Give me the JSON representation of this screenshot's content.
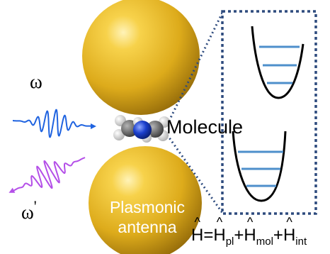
{
  "labels": {
    "omega": "ω",
    "omega_prime_symbol": "ω",
    "omega_prime_mark": "'",
    "molecule": "Molecule",
    "antenna": "Plasmonic antenna"
  },
  "hamiltonian": {
    "H": "H",
    "equals": "=",
    "plus": "+",
    "pl": "pl",
    "mol": "mol",
    "int": "int"
  },
  "colors": {
    "gold": "#DDAB1B",
    "incoming_wave": "#1F63E0",
    "outgoing_wave": "#B44FE8",
    "zoom_box": "#2E4B7E",
    "energy_levels": "#4E8FCB",
    "potential": "#000000",
    "nitrogen": "#1B3FCC",
    "carbon": "#5A5A5A",
    "hydrogen": "#DCDCDC"
  },
  "energy_levels": {
    "upper_well_levels": 3,
    "lower_well_levels": 3
  }
}
